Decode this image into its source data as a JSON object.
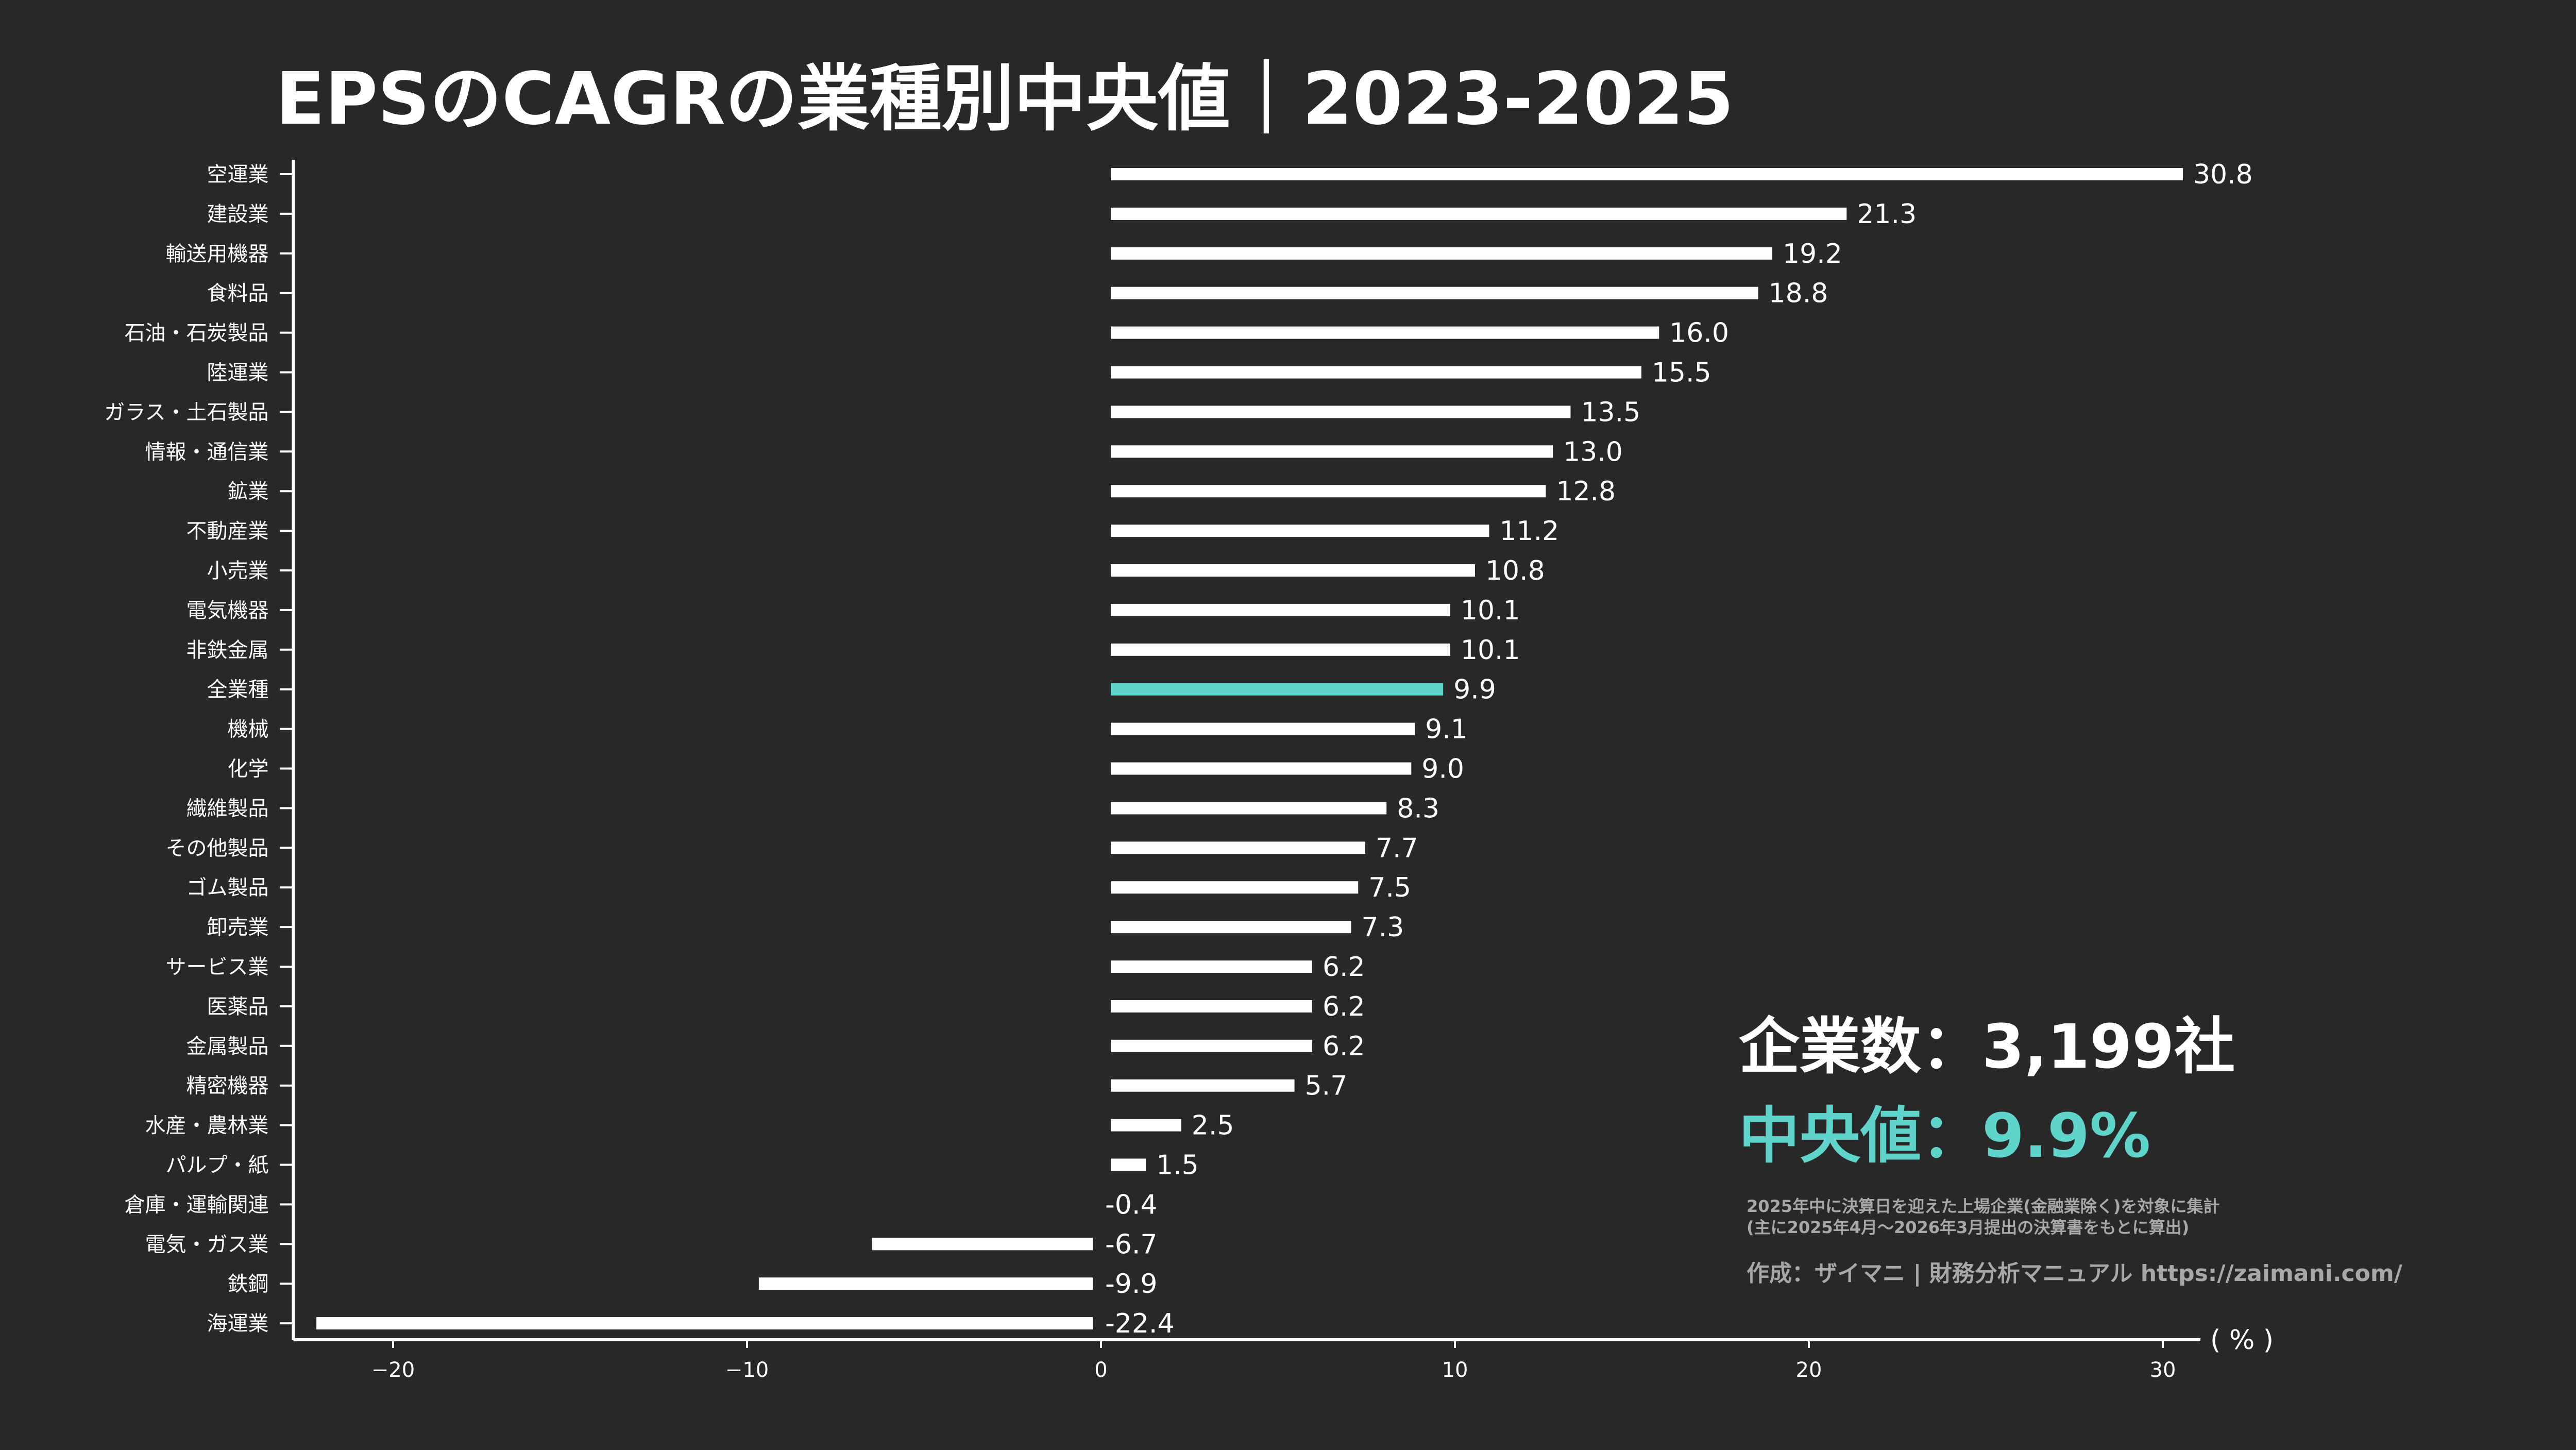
{
  "chart_data": {
    "type": "bar",
    "orientation": "horizontal",
    "title": "EPSのCAGRの業種別中央値｜2023-2025",
    "xlabel": "( % )",
    "ylabel": "",
    "xlim": [
      -22.7,
      30.8
    ],
    "xticks": [
      -20,
      -10,
      0,
      10,
      20,
      30
    ],
    "xtick_labels": [
      "−20",
      "−10",
      "0",
      "10",
      "20",
      "30"
    ],
    "grid": false,
    "categories": [
      "空運業",
      "建設業",
      "輸送用機器",
      "食料品",
      "石油・石炭製品",
      "陸運業",
      "ガラス・土石製品",
      "情報・通信業",
      "鉱業",
      "不動産業",
      "小売業",
      "電気機器",
      "非鉄金属",
      "全業種",
      "機械",
      "化学",
      "繊維製品",
      "その他製品",
      "ゴム製品",
      "卸売業",
      "サービス業",
      "医薬品",
      "金属製品",
      "精密機器",
      "水産・農林業",
      "パルプ・紙",
      "倉庫・運輸関連",
      "電気・ガス業",
      "鉄鋼",
      "海運業"
    ],
    "values": [
      30.8,
      21.3,
      19.2,
      18.8,
      16.0,
      15.5,
      13.5,
      13.0,
      12.8,
      11.2,
      10.8,
      10.1,
      10.1,
      9.9,
      9.1,
      9.0,
      8.3,
      7.7,
      7.5,
      7.3,
      6.2,
      6.2,
      6.2,
      5.7,
      2.5,
      1.5,
      -0.4,
      -6.7,
      -9.9,
      -22.4
    ],
    "value_labels": [
      "30.8",
      "21.3",
      "19.2",
      "18.8",
      "16.0",
      "15.5",
      "13.5",
      "13.0",
      "12.8",
      "11.2",
      "10.8",
      "10.1",
      "10.1",
      "9.9",
      "9.1",
      "9.0",
      "8.3",
      "7.7",
      "7.5",
      "7.3",
      "6.2",
      "6.2",
      "6.2",
      "5.7",
      "2.5",
      "1.5",
      "-0.4",
      "-6.7",
      "-9.9",
      "-22.4"
    ],
    "highlight_category": "全業種",
    "colors": {
      "bar": "#ffffff",
      "highlight": "#5fd4cb",
      "background": "#282828",
      "note": "#a8a8a8"
    }
  },
  "annotations": {
    "company_count": "企業数：3,199社",
    "median": "中央値：9.9%",
    "note_line1": "2025年中に決算日を迎えた上場企業(金融業除く)を対象に集計",
    "note_line2": "(主に2025年4月～2026年3月提出の決算書をもとに算出)",
    "credit": "作成：ザイマニ | 財務分析マニュアル https://zaimani.com/"
  }
}
